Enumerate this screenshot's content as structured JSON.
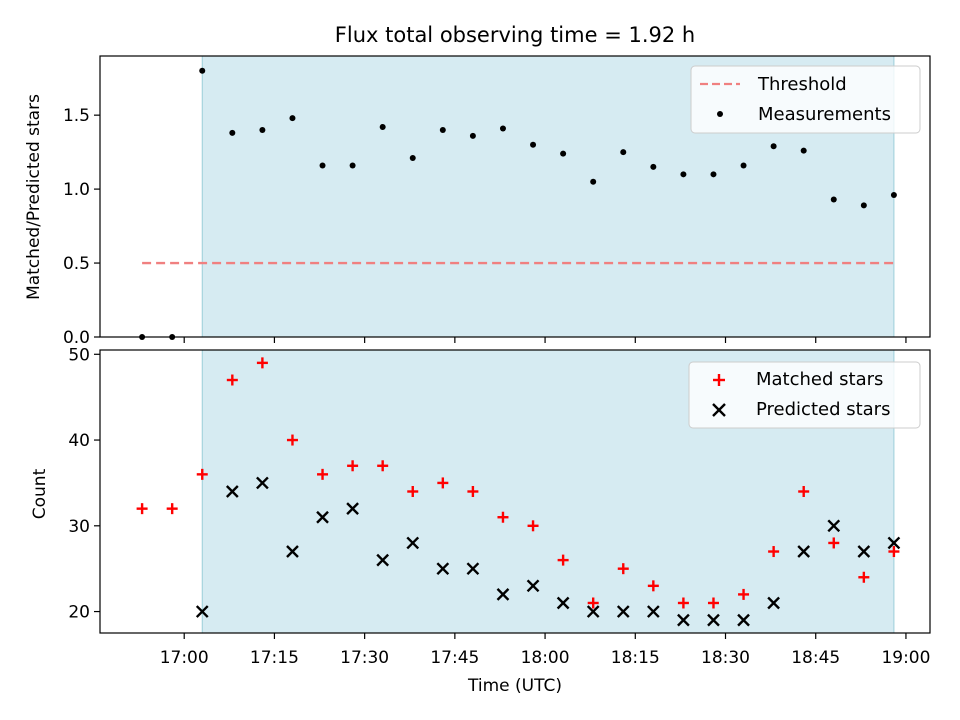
{
  "chart_data": [
    {
      "type": "scatter",
      "title": "Flux total observing time = 1.92 h",
      "xlabel": "",
      "ylabel": "Matched/Predicted stars",
      "ylim": [
        0,
        1.9
      ],
      "yticks": [
        "0.0",
        "0.5",
        "1.0",
        "1.5"
      ],
      "ytick_values": [
        0,
        0.5,
        1.0,
        1.5
      ],
      "shaded_interval": [
        "17:03",
        "18:58"
      ],
      "shade_color": "#add8e6",
      "threshold": {
        "name": "Threshold",
        "value": 0.5,
        "from": "16:53",
        "to": "18:58",
        "color": "#f08080"
      },
      "legend_position": "upper right",
      "series": [
        {
          "name": "Measurements",
          "marker": "dot",
          "color": "#000000",
          "x": [
            "16:53",
            "16:58",
            "17:03",
            "17:08",
            "17:13",
            "17:18",
            "17:23",
            "17:28",
            "17:33",
            "17:38",
            "17:43",
            "17:48",
            "17:53",
            "17:58",
            "18:03",
            "18:08",
            "18:13",
            "18:18",
            "18:23",
            "18:28",
            "18:33",
            "18:38",
            "18:43",
            "18:48",
            "18:53",
            "18:58"
          ],
          "y": [
            0.0,
            0.0,
            1.8,
            1.38,
            1.4,
            1.48,
            1.16,
            1.16,
            1.42,
            1.21,
            1.4,
            1.36,
            1.41,
            1.3,
            1.24,
            1.05,
            1.25,
            1.15,
            1.1,
            1.1,
            1.16,
            1.29,
            1.26,
            0.93,
            0.89,
            0.96
          ]
        }
      ]
    },
    {
      "type": "scatter",
      "title": "",
      "xlabel": "Time (UTC)",
      "ylabel": "Count",
      "ylim": [
        17.5,
        50.5
      ],
      "yticks": [
        "20",
        "30",
        "40",
        "50"
      ],
      "ytick_values": [
        20,
        30,
        40,
        50
      ],
      "xticks": [
        "17:00",
        "17:15",
        "17:30",
        "17:45",
        "18:00",
        "18:15",
        "18:30",
        "18:45",
        "19:00"
      ],
      "xlim": [
        "16:46",
        "19:04"
      ],
      "shaded_interval": [
        "17:03",
        "18:58"
      ],
      "shade_color": "#add8e6",
      "legend_position": "upper right",
      "series": [
        {
          "name": "Matched stars",
          "marker": "plus",
          "color": "#ff0000",
          "x": [
            "16:53",
            "16:58",
            "17:03",
            "17:08",
            "17:13",
            "17:18",
            "17:23",
            "17:28",
            "17:33",
            "17:38",
            "17:43",
            "17:48",
            "17:53",
            "17:58",
            "18:03",
            "18:08",
            "18:13",
            "18:18",
            "18:23",
            "18:28",
            "18:33",
            "18:38",
            "18:43",
            "18:48",
            "18:53",
            "18:58"
          ],
          "y": [
            32,
            32,
            36,
            47,
            49,
            40,
            36,
            37,
            37,
            34,
            35,
            34,
            31,
            30,
            26,
            21,
            25,
            23,
            21,
            21,
            22,
            27,
            34,
            28,
            24,
            27
          ]
        },
        {
          "name": "Predicted stars",
          "marker": "x",
          "color": "#000000",
          "x": [
            "17:03",
            "17:08",
            "17:13",
            "17:18",
            "17:23",
            "17:28",
            "17:33",
            "17:38",
            "17:43",
            "17:48",
            "17:53",
            "17:58",
            "18:03",
            "18:08",
            "18:13",
            "18:18",
            "18:23",
            "18:28",
            "18:33",
            "18:38",
            "18:43",
            "18:48",
            "18:53",
            "18:58"
          ],
          "y": [
            20,
            34,
            35,
            27,
            31,
            32,
            26,
            28,
            25,
            25,
            22,
            23,
            21,
            20,
            20,
            20,
            19,
            19,
            19,
            21,
            27,
            30,
            27,
            28
          ]
        }
      ]
    }
  ]
}
